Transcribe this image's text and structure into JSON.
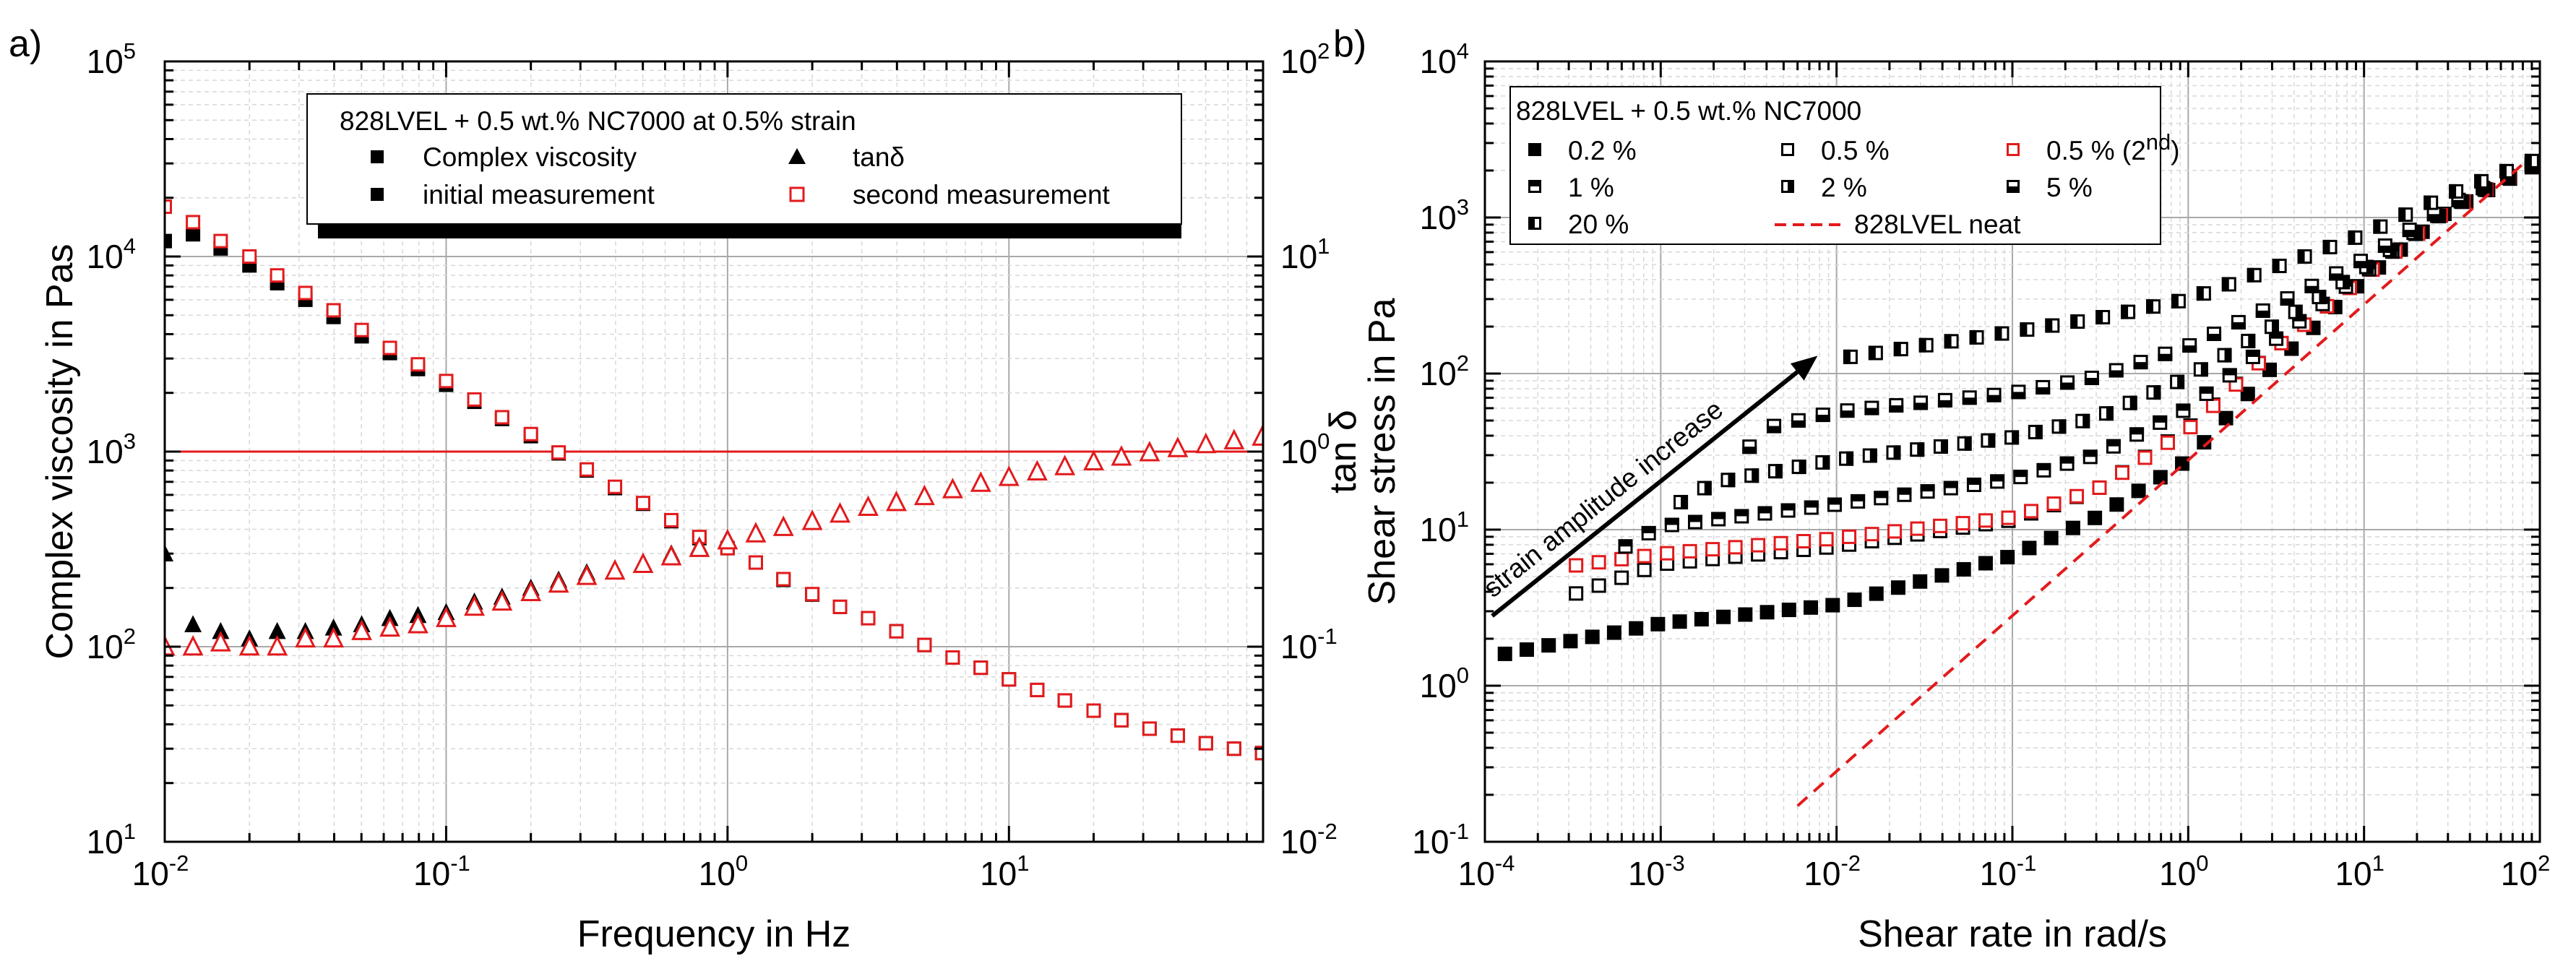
{
  "colors": {
    "red": "#e31a1c",
    "black": "#000000",
    "grid_major": "#a9a9a9",
    "grid_minor": "#d8d8d8"
  },
  "chart_data": [
    {
      "panel": "a)",
      "type": "scatter",
      "xlabel": "Frequency in Hz",
      "ylabel": "Complex viscosity in Pas",
      "y2label": "tan δ",
      "xscale": "log",
      "yscale": "log",
      "y2scale": "log",
      "xlim": [
        0.01,
        80
      ],
      "ylim": [
        10,
        100000
      ],
      "y2lim": [
        0.01,
        100
      ],
      "xticks": [
        {
          "v": 0.01,
          "b": "10",
          "e": "-2"
        },
        {
          "v": 0.1,
          "b": "10",
          "e": "-1"
        },
        {
          "v": 1,
          "b": "10",
          "e": "0"
        },
        {
          "v": 10,
          "b": "10",
          "e": "1"
        }
      ],
      "yticks": [
        {
          "v": 10,
          "b": "10",
          "e": "1"
        },
        {
          "v": 100,
          "b": "10",
          "e": "2"
        },
        {
          "v": 1000,
          "b": "10",
          "e": "3"
        },
        {
          "v": 10000,
          "b": "10",
          "e": "4"
        },
        {
          "v": 100000,
          "b": "10",
          "e": "5"
        }
      ],
      "y2ticks": [
        {
          "v": 0.01,
          "b": "10",
          "e": "-2"
        },
        {
          "v": 0.1,
          "b": "10",
          "e": "-1"
        },
        {
          "v": 1,
          "b": "10",
          "e": "0"
        },
        {
          "v": 10,
          "b": "10",
          "e": "1"
        },
        {
          "v": 100,
          "b": "10",
          "e": "2"
        }
      ],
      "grid": true,
      "legend": {
        "position": "top-center",
        "title": "828LVEL + 0.5 wt.% NC7000 at 0.5% strain",
        "entries": [
          {
            "label": "Complex viscosity",
            "marker": "square-filled",
            "color": "#000000"
          },
          {
            "label": "initial measurement",
            "marker": "square-filled",
            "color": "#000000"
          },
          {
            "label": "tanδ",
            "marker": "triangle-filled",
            "color": "#000000"
          },
          {
            "label": "second measurement",
            "marker": "square-open",
            "color": "#e31a1c"
          }
        ]
      },
      "reference_lines": [
        {
          "axis": "y2",
          "value": 1,
          "color": "#e31a1c",
          "description": "tan δ = 1"
        }
      ],
      "x": [
        0.01,
        0.0126,
        0.0158,
        0.02,
        0.0251,
        0.0316,
        0.0398,
        0.0501,
        0.0631,
        0.0794,
        0.1,
        0.126,
        0.158,
        0.2,
        0.251,
        0.316,
        0.398,
        0.501,
        0.631,
        0.794,
        1,
        1.26,
        1.58,
        2,
        2.51,
        3.16,
        3.98,
        5.01,
        6.31,
        7.94,
        10,
        12.6,
        15.8,
        20,
        25.1,
        31.6,
        39.8,
        50.1,
        63.1,
        79.4
      ],
      "series": [
        {
          "name": "Complex viscosity - initial measurement",
          "axis": "y",
          "marker": "square-filled",
          "color": "#000000",
          "values": [
            12000,
            13000,
            11000,
            9000,
            7300,
            6000,
            4900,
            3900,
            3200,
            2650,
            2200,
            1800,
            1470,
            1200,
            980,
            800,
            650,
            540,
            440,
            360,
            320,
            270,
            220,
            185,
            160,
            140,
            120,
            102,
            88,
            78,
            68,
            60,
            53,
            47,
            42,
            38,
            35,
            32,
            30,
            28.5
          ]
        },
        {
          "name": "Complex viscosity - second measurement",
          "axis": "y",
          "marker": "square-open",
          "color": "#e31a1c",
          "values": [
            18000,
            15000,
            12000,
            10000,
            8000,
            6500,
            5300,
            4200,
            3400,
            2800,
            2300,
            1850,
            1500,
            1230,
            990,
            810,
            660,
            545,
            445,
            365,
            320,
            270,
            222,
            186,
            160,
            140,
            120,
            102,
            88,
            78,
            68,
            60,
            53,
            47,
            42,
            38,
            35,
            32,
            30,
            28.5
          ]
        },
        {
          "name": "tanδ - initial measurement",
          "axis": "y2",
          "marker": "triangle-filled",
          "color": "#000000",
          "values": [
            0.3,
            0.13,
            0.12,
            0.11,
            0.12,
            0.12,
            0.125,
            0.13,
            0.14,
            0.145,
            0.15,
            0.17,
            0.18,
            0.2,
            0.22,
            0.24,
            0.25,
            0.27,
            0.3,
            0.33,
            0.36,
            0.39,
            0.42,
            0.45,
            0.49,
            0.53,
            0.56,
            0.6,
            0.65,
            0.7,
            0.75,
            0.8,
            0.85,
            0.9,
            0.95,
            1.0,
            1.05,
            1.1,
            1.15,
            1.2
          ]
        },
        {
          "name": "tanδ - second measurement",
          "axis": "y2",
          "marker": "triangle-open",
          "color": "#e31a1c",
          "values": [
            0.1,
            0.1,
            0.105,
            0.1,
            0.1,
            0.11,
            0.11,
            0.12,
            0.125,
            0.13,
            0.14,
            0.16,
            0.17,
            0.19,
            0.21,
            0.23,
            0.245,
            0.265,
            0.29,
            0.32,
            0.35,
            0.38,
            0.41,
            0.44,
            0.48,
            0.52,
            0.55,
            0.59,
            0.64,
            0.69,
            0.74,
            0.79,
            0.84,
            0.89,
            0.94,
            0.99,
            1.04,
            1.09,
            1.14,
            1.19
          ]
        }
      ]
    },
    {
      "panel": "b)",
      "type": "scatter",
      "xlabel": "Shear rate in rad/s",
      "ylabel": "Shear stress in Pa",
      "xscale": "log",
      "yscale": "log",
      "xlim": [
        0.0001,
        100
      ],
      "ylim": [
        0.1,
        10000
      ],
      "xticks": [
        {
          "v": 0.0001,
          "b": "10",
          "e": "-4"
        },
        {
          "v": 0.001,
          "b": "10",
          "e": "-3"
        },
        {
          "v": 0.01,
          "b": "10",
          "e": "-2"
        },
        {
          "v": 0.1,
          "b": "10",
          "e": "-1"
        },
        {
          "v": 1,
          "b": "10",
          "e": "0"
        },
        {
          "v": 10,
          "b": "10",
          "e": "1"
        },
        {
          "v": 100,
          "b": "10",
          "e": "2"
        }
      ],
      "yticks": [
        {
          "v": 0.1,
          "b": "10",
          "e": "-1"
        },
        {
          "v": 1,
          "b": "10",
          "e": "0"
        },
        {
          "v": 10,
          "b": "10",
          "e": "1"
        },
        {
          "v": 100,
          "b": "10",
          "e": "2"
        },
        {
          "v": 1000,
          "b": "10",
          "e": "3"
        },
        {
          "v": 10000,
          "b": "10",
          "e": "4"
        }
      ],
      "grid": true,
      "legend": {
        "position": "top-left",
        "title": "828LVEL + 0.5 wt.% NC7000",
        "entries": [
          {
            "label": "0.2 %",
            "marker": "square-filled",
            "color": "#000000"
          },
          {
            "label": "0.5 %",
            "marker": "square-open",
            "color": "#000000"
          },
          {
            "label": "0.5 % (2",
            "label_sup": "nd",
            "label_tail": ")",
            "marker": "square-open",
            "color": "#e31a1c"
          },
          {
            "label": "1 %",
            "marker": "square-top-half",
            "color": "#000000"
          },
          {
            "label": "2 %",
            "marker": "square-right-half",
            "color": "#000000"
          },
          {
            "label": "5 %",
            "marker": "square-bottom-half",
            "color": "#000000"
          },
          {
            "label": "20 %",
            "marker": "square-left-half",
            "color": "#000000"
          },
          {
            "label": "828LVEL neat",
            "marker": "dashed-line",
            "color": "#e31a1c"
          }
        ]
      },
      "annotation": {
        "text": "strain amplitude increase",
        "arrow_from": [
          0.00011,
          2.8
        ],
        "arrow_to": [
          0.0078,
          130
        ]
      },
      "series": [
        {
          "name": "0.2 %",
          "marker": "square-filled",
          "color": "#000000",
          "x_range": [
            0.00013,
            90
          ],
          "n": 48,
          "points": [
            [
              0.00013,
              1.6
            ],
            [
              0.001,
              2.5
            ],
            [
              0.01,
              3.3
            ],
            [
              0.1,
              6.8
            ],
            [
              0.3,
              12
            ],
            [
              1,
              28
            ],
            [
              3,
              110
            ],
            [
              10,
              400
            ],
            [
              30,
              1100
            ],
            [
              90,
              2100
            ]
          ]
        },
        {
          "name": "0.5 %",
          "marker": "square-open",
          "color": "#000000",
          "x_range": [
            0.00033,
            90
          ],
          "n": 43,
          "points": [
            [
              0.00033,
              3.9
            ],
            [
              0.001,
              6.0
            ],
            [
              0.01,
              7.8
            ],
            [
              0.1,
              11.5
            ],
            [
              0.3,
              18
            ],
            [
              1,
              45
            ],
            [
              3,
              140
            ],
            [
              10,
              420
            ],
            [
              30,
              1120
            ],
            [
              90,
              2150
            ]
          ]
        },
        {
          "name": "0.5 % (2nd)",
          "marker": "square-open",
          "color": "#e31a1c",
          "x_range": [
            0.00033,
            90
          ],
          "n": 43,
          "points": [
            [
              0.00033,
              5.9
            ],
            [
              0.001,
              7.0
            ],
            [
              0.01,
              8.8
            ],
            [
              0.1,
              12
            ],
            [
              0.3,
              18
            ],
            [
              1,
              44
            ],
            [
              3,
              140
            ],
            [
              10,
              420
            ],
            [
              30,
              1120
            ],
            [
              90,
              2150
            ]
          ]
        },
        {
          "name": "1 %",
          "marker": "square-top-half",
          "color": "#000000",
          "x_range": [
            0.00063,
            90
          ],
          "n": 40,
          "points": [
            [
              0.00063,
              7.8
            ],
            [
              0.001,
              10.5
            ],
            [
              0.01,
              14.5
            ],
            [
              0.1,
              21
            ],
            [
              0.3,
              30
            ],
            [
              1,
              60
            ],
            [
              3,
              160
            ],
            [
              10,
              440
            ],
            [
              30,
              1130
            ],
            [
              90,
              2150
            ]
          ]
        },
        {
          "name": "2 %",
          "marker": "square-right-half",
          "color": "#000000",
          "x_range": [
            0.0013,
            90
          ],
          "n": 37,
          "points": [
            [
              0.0013,
              15
            ],
            [
              0.002,
              20
            ],
            [
              0.01,
              28
            ],
            [
              0.1,
              39
            ],
            [
              0.3,
              52
            ],
            [
              1,
              95
            ],
            [
              3,
              200
            ],
            [
              10,
              470
            ],
            [
              30,
              1150
            ],
            [
              90,
              2170
            ]
          ]
        },
        {
          "name": "5 %",
          "marker": "square-bottom-half",
          "color": "#000000",
          "x_range": [
            0.0032,
            90
          ],
          "n": 33,
          "points": [
            [
              0.0032,
              34
            ],
            [
              0.004,
              45
            ],
            [
              0.01,
              57
            ],
            [
              0.1,
              75
            ],
            [
              0.3,
              95
            ],
            [
              1,
              150
            ],
            [
              3,
              270
            ],
            [
              10,
              540
            ],
            [
              30,
              1200
            ],
            [
              90,
              2200
            ]
          ]
        },
        {
          "name": "20 %",
          "marker": "square-left-half",
          "color": "#000000",
          "x_range": [
            0.012,
            90
          ],
          "n": 28,
          "points": [
            [
              0.012,
              128
            ],
            [
              0.03,
              150
            ],
            [
              0.1,
              185
            ],
            [
              0.3,
              225
            ],
            [
              1,
              300
            ],
            [
              3,
              470
            ],
            [
              10,
              780
            ],
            [
              30,
              1400
            ],
            [
              90,
              2300
            ]
          ]
        },
        {
          "name": "828LVEL neat",
          "marker": "dashed-line",
          "color": "#e31a1c",
          "points": [
            [
              0.006,
              0.17
            ],
            [
              80,
              2200
            ]
          ]
        }
      ]
    }
  ]
}
